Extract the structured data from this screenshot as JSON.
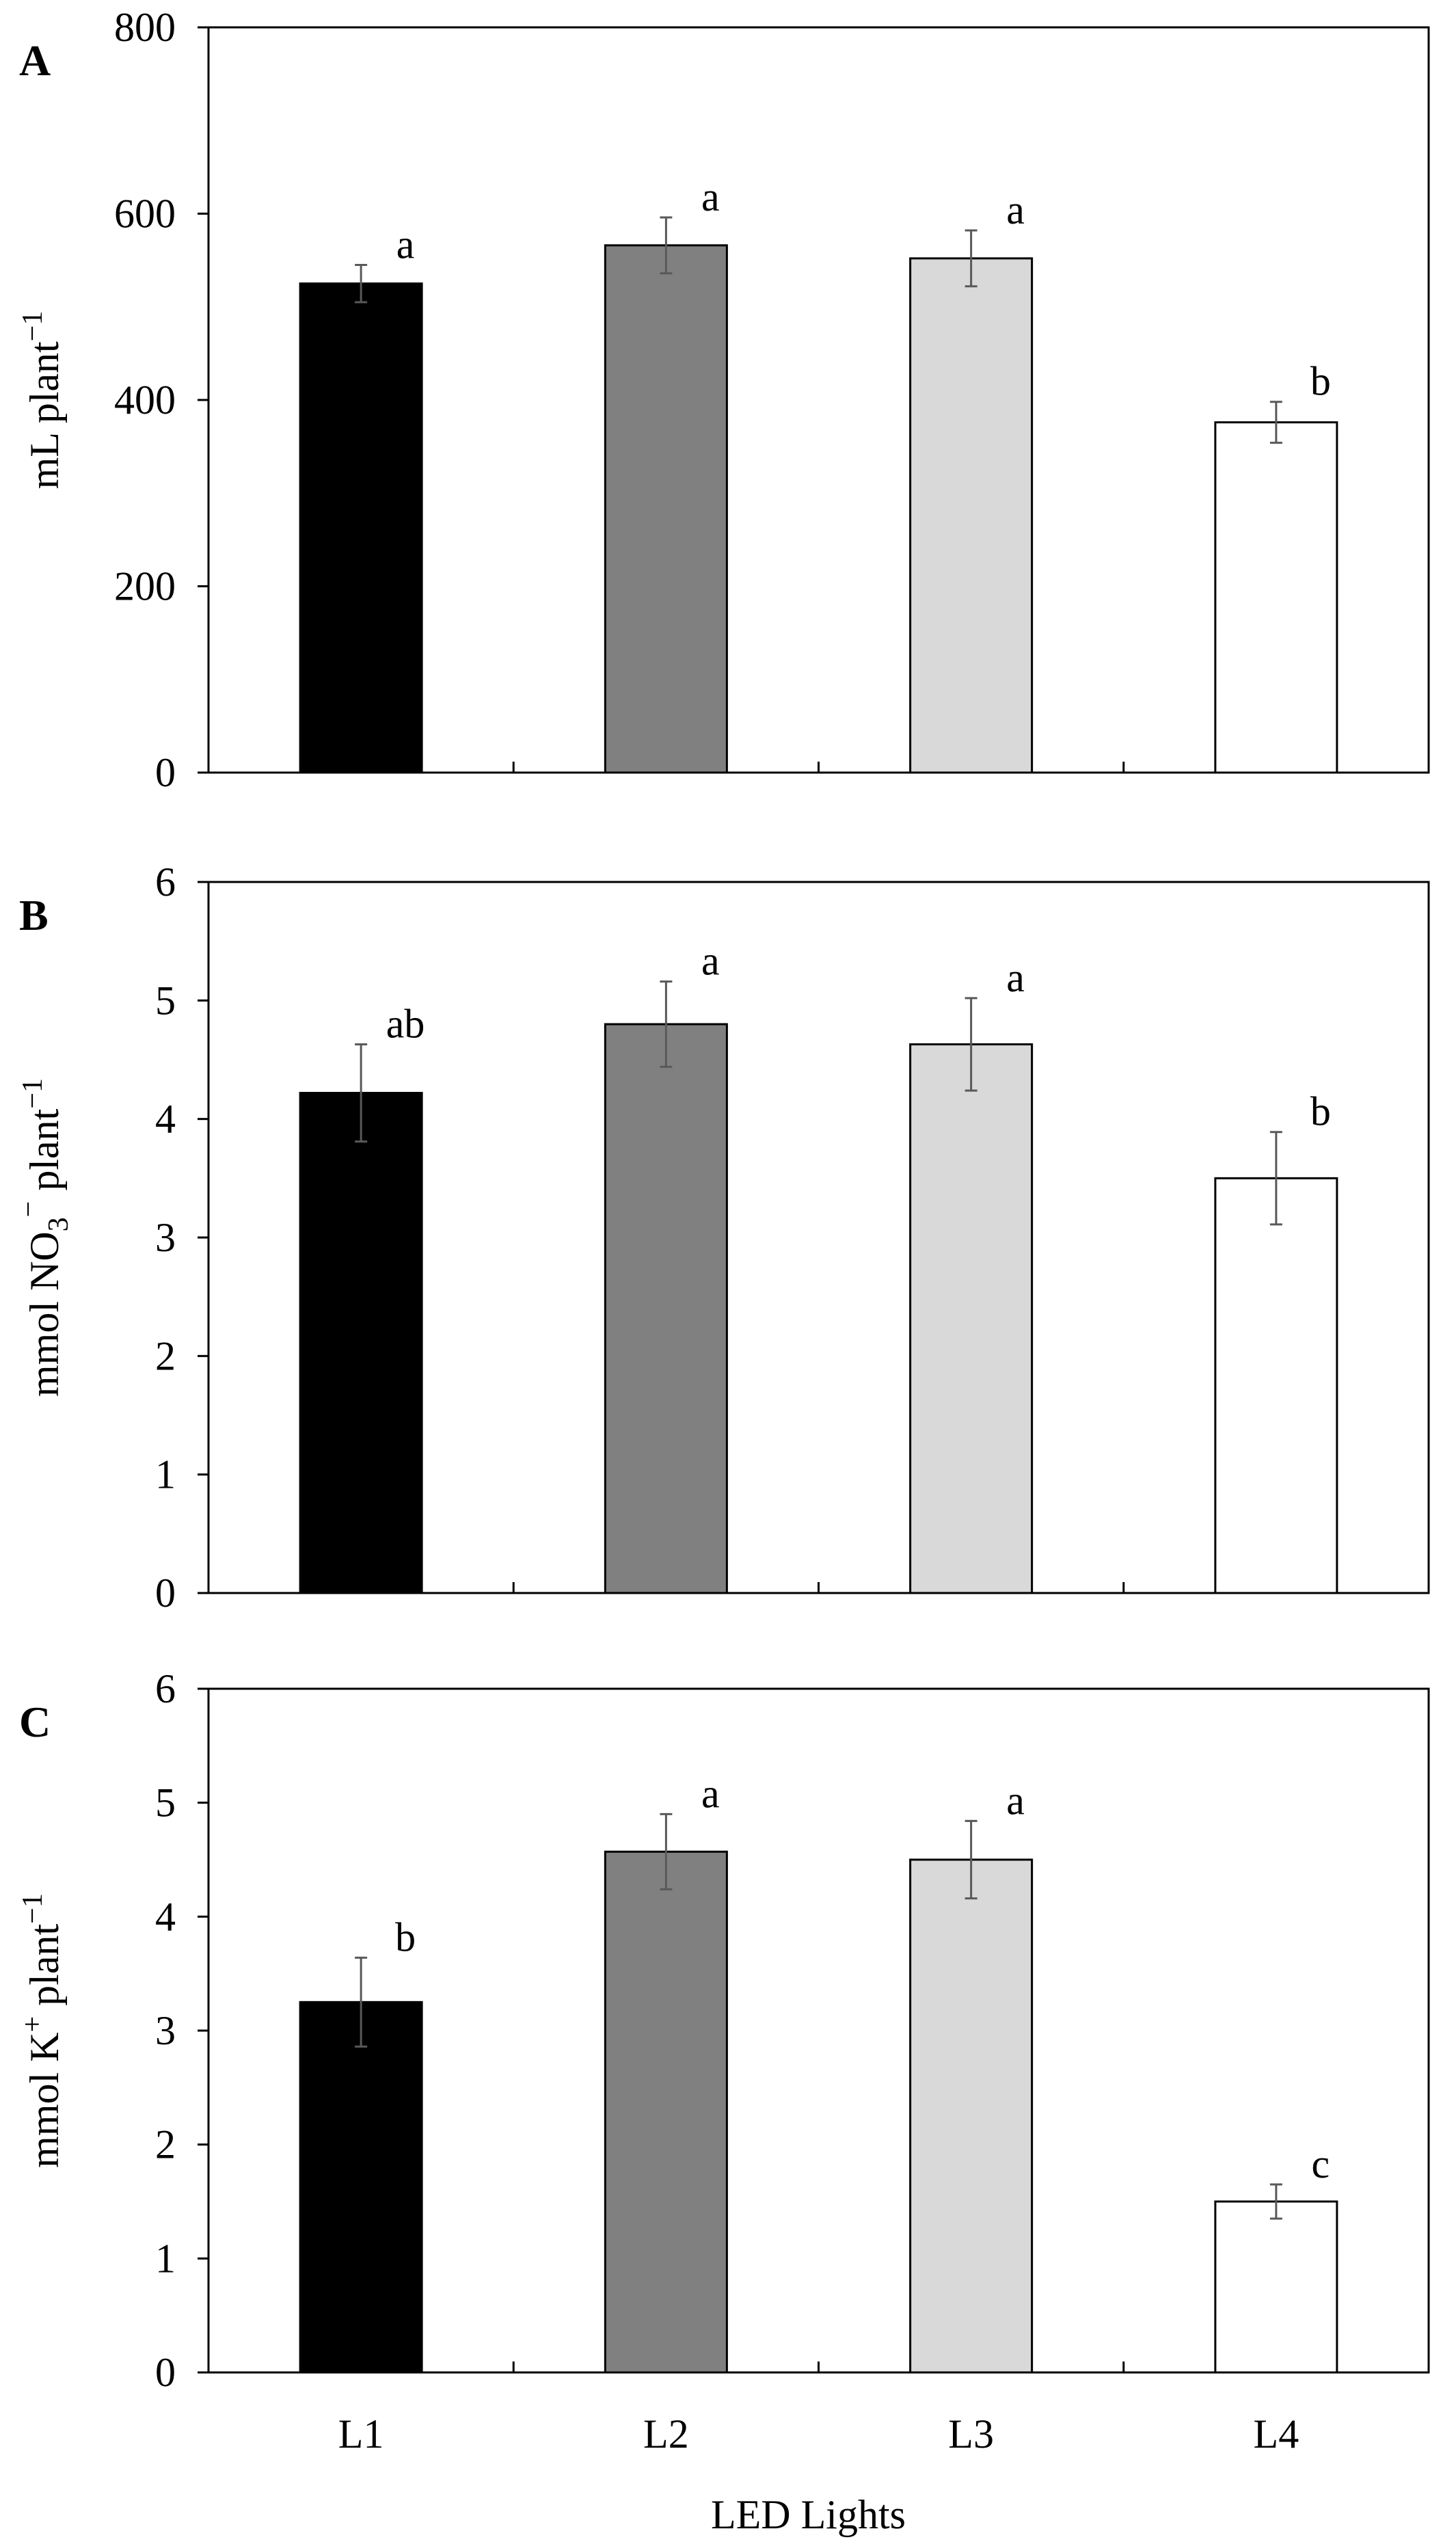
{
  "chart_data": [
    {
      "type": "bar",
      "panel": "A",
      "ylabel_main": "mL plant",
      "ylabel_sup": "−1",
      "ylim": [
        0,
        800
      ],
      "yticks": [
        "0",
        "200",
        "400",
        "600",
        "800"
      ],
      "categories": [
        "L1",
        "L2",
        "L3",
        "L4"
      ],
      "values": [
        525,
        566,
        552,
        376
      ],
      "errors": [
        20,
        30,
        30,
        22
      ],
      "letters": [
        "a",
        "a",
        "a",
        "b"
      ]
    },
    {
      "type": "bar",
      "panel": "B",
      "ylabel_main": "mmol  NO",
      "ylabel_sub": "3",
      "ylabel_sup": "−",
      "ylabel_tail": " plant",
      "ylabel_sup2": "−1",
      "ylim": [
        0,
        6
      ],
      "yticks": [
        "0",
        "1",
        "2",
        "3",
        "4",
        "5",
        "6"
      ],
      "categories": [
        "L1",
        "L2",
        "L3",
        "L4"
      ],
      "values": [
        4.22,
        4.8,
        4.63,
        3.5
      ],
      "errors": [
        0.41,
        0.36,
        0.39,
        0.39
      ],
      "letters": [
        "ab",
        "a",
        "a",
        "b"
      ]
    },
    {
      "type": "bar",
      "panel": "C",
      "ylabel_main": "mmol  K",
      "ylabel_sup": "+",
      "ylabel_tail": " plant",
      "ylabel_sup2": "−1",
      "ylim": [
        0,
        6
      ],
      "yticks": [
        "0",
        "1",
        "2",
        "3",
        "4",
        "5",
        "6"
      ],
      "categories": [
        "L1",
        "L2",
        "L3",
        "L4"
      ],
      "values": [
        3.25,
        4.57,
        4.5,
        1.5
      ],
      "errors": [
        0.39,
        0.33,
        0.34,
        0.15
      ],
      "letters": [
        "b",
        "a",
        "a",
        "c"
      ]
    }
  ],
  "xaxis": {
    "ticks": [
      "L1",
      "L2",
      "L3",
      "L4"
    ],
    "label": "LED Lights"
  },
  "colors": {
    "bars": [
      "#000000",
      "#808080",
      "#d9d9d9",
      "#ffffff"
    ],
    "axis": "#000000",
    "error": "#595959"
  }
}
